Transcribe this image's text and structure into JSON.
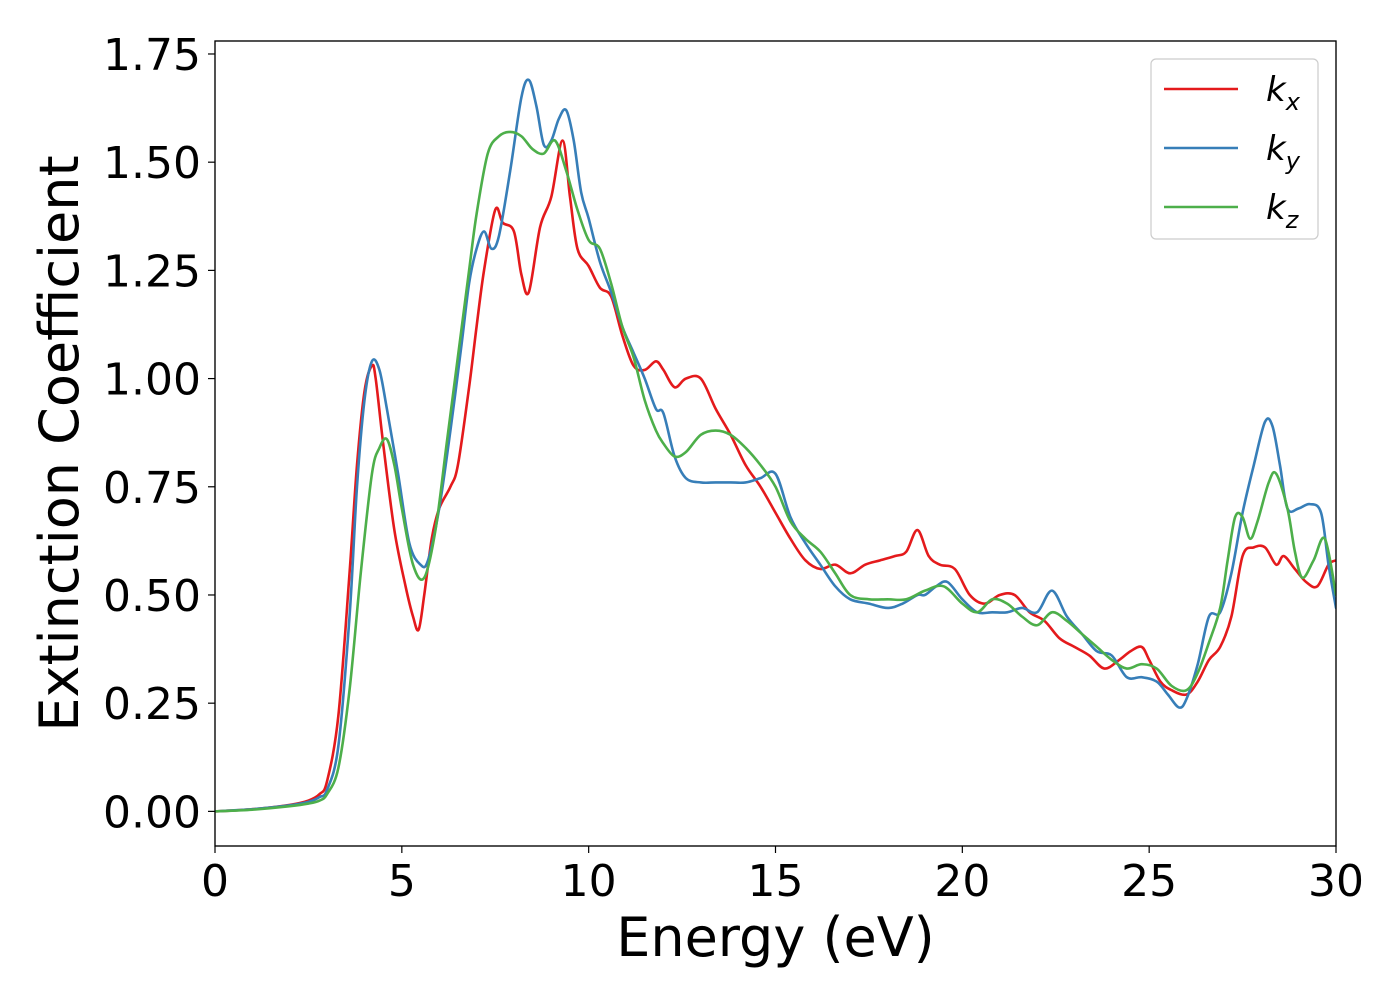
{
  "chart_data": {
    "type": "line",
    "title": "",
    "xlabel": "Energy (eV)",
    "ylabel": "Extinction Coefficient",
    "xlim": [
      0,
      30
    ],
    "ylim": [
      -0.08,
      1.78
    ],
    "xticks": [
      0,
      5,
      10,
      15,
      20,
      25,
      30
    ],
    "xtick_labels": [
      "0",
      "5",
      "10",
      "15",
      "20",
      "25",
      "30"
    ],
    "yticks": [
      0.0,
      0.25,
      0.5,
      0.75,
      1.0,
      1.25,
      1.5,
      1.75
    ],
    "ytick_labels": [
      "0.00",
      "0.25",
      "0.50",
      "0.75",
      "1.00",
      "1.25",
      "1.50",
      "1.75"
    ],
    "grid": false,
    "legend_position": "top-right",
    "series": [
      {
        "name": "kx",
        "legend_base": "k",
        "legend_sub": "x",
        "color": "#e41a1c",
        "x": [
          0,
          1,
          2,
          2.5,
          2.8,
          3.0,
          3.3,
          3.6,
          3.8,
          4.0,
          4.2,
          4.3,
          4.5,
          4.8,
          5.1,
          5.3,
          5.45,
          5.6,
          5.8,
          6.0,
          6.3,
          6.5,
          6.8,
          7.0,
          7.2,
          7.5,
          7.7,
          8.0,
          8.2,
          8.4,
          8.7,
          9.0,
          9.3,
          9.5,
          9.7,
          10.0,
          10.3,
          10.6,
          10.9,
          11.2,
          11.5,
          11.8,
          12.0,
          12.3,
          12.6,
          13.0,
          13.4,
          13.8,
          14.2,
          14.6,
          15.0,
          15.4,
          15.8,
          16.2,
          16.6,
          17.0,
          17.4,
          17.8,
          18.2,
          18.5,
          18.8,
          19.1,
          19.4,
          19.8,
          20.2,
          20.6,
          21.0,
          21.4,
          21.8,
          22.2,
          22.6,
          23.0,
          23.4,
          23.8,
          24.2,
          24.5,
          24.8,
          25.0,
          25.3,
          25.6,
          26.0,
          26.3,
          26.6,
          26.9,
          27.2,
          27.5,
          27.8,
          28.1,
          28.4,
          28.6,
          28.9,
          29.2,
          29.5,
          29.8,
          30.0
        ],
        "y": [
          0.0,
          0.005,
          0.015,
          0.025,
          0.04,
          0.07,
          0.22,
          0.55,
          0.8,
          0.97,
          1.03,
          1.0,
          0.85,
          0.65,
          0.52,
          0.45,
          0.42,
          0.5,
          0.63,
          0.7,
          0.75,
          0.8,
          0.98,
          1.12,
          1.25,
          1.39,
          1.36,
          1.34,
          1.24,
          1.2,
          1.35,
          1.42,
          1.55,
          1.42,
          1.3,
          1.26,
          1.21,
          1.19,
          1.1,
          1.03,
          1.02,
          1.04,
          1.02,
          0.98,
          1.0,
          1.0,
          0.93,
          0.87,
          0.8,
          0.75,
          0.69,
          0.63,
          0.58,
          0.56,
          0.57,
          0.55,
          0.57,
          0.58,
          0.59,
          0.6,
          0.65,
          0.59,
          0.57,
          0.56,
          0.5,
          0.48,
          0.5,
          0.5,
          0.46,
          0.44,
          0.4,
          0.38,
          0.36,
          0.33,
          0.35,
          0.37,
          0.38,
          0.35,
          0.3,
          0.28,
          0.27,
          0.3,
          0.35,
          0.38,
          0.45,
          0.59,
          0.61,
          0.61,
          0.57,
          0.59,
          0.56,
          0.53,
          0.52,
          0.57,
          0.58
        ]
      },
      {
        "name": "ky",
        "legend_base": "k",
        "legend_sub": "y",
        "color": "#377eb8",
        "x": [
          0,
          1,
          2,
          2.5,
          2.8,
          3.0,
          3.3,
          3.6,
          3.8,
          4.0,
          4.2,
          4.4,
          4.6,
          4.9,
          5.2,
          5.5,
          5.7,
          6.0,
          6.3,
          6.6,
          6.8,
          7.0,
          7.2,
          7.4,
          7.6,
          7.9,
          8.2,
          8.4,
          8.6,
          8.8,
          9.0,
          9.2,
          9.4,
          9.6,
          9.8,
          10.0,
          10.3,
          10.6,
          10.9,
          11.2,
          11.5,
          11.8,
          12.0,
          12.3,
          12.6,
          13.0,
          13.4,
          13.8,
          14.2,
          14.6,
          15.0,
          15.4,
          15.8,
          16.2,
          16.6,
          17.0,
          17.5,
          18.0,
          18.4,
          18.8,
          19.0,
          19.3,
          19.6,
          20.0,
          20.4,
          20.8,
          21.2,
          21.6,
          22.0,
          22.4,
          22.8,
          23.2,
          23.6,
          24.0,
          24.4,
          24.8,
          25.2,
          25.5,
          25.8,
          26.0,
          26.3,
          26.6,
          26.9,
          27.2,
          27.5,
          27.8,
          28.1,
          28.3,
          28.5,
          28.7,
          29.0,
          29.3,
          29.6,
          29.8,
          30.0
        ],
        "y": [
          0.0,
          0.005,
          0.014,
          0.022,
          0.033,
          0.05,
          0.15,
          0.45,
          0.75,
          0.95,
          1.04,
          1.02,
          0.93,
          0.78,
          0.62,
          0.57,
          0.58,
          0.7,
          0.88,
          1.08,
          1.22,
          1.3,
          1.34,
          1.3,
          1.33,
          1.48,
          1.65,
          1.69,
          1.63,
          1.54,
          1.55,
          1.6,
          1.62,
          1.55,
          1.43,
          1.37,
          1.27,
          1.2,
          1.12,
          1.06,
          1.0,
          0.93,
          0.92,
          0.82,
          0.77,
          0.76,
          0.76,
          0.76,
          0.76,
          0.77,
          0.78,
          0.68,
          0.62,
          0.57,
          0.52,
          0.49,
          0.48,
          0.47,
          0.48,
          0.5,
          0.5,
          0.52,
          0.53,
          0.49,
          0.46,
          0.46,
          0.46,
          0.47,
          0.46,
          0.51,
          0.45,
          0.41,
          0.37,
          0.36,
          0.31,
          0.31,
          0.3,
          0.27,
          0.24,
          0.26,
          0.34,
          0.45,
          0.46,
          0.55,
          0.69,
          0.8,
          0.9,
          0.89,
          0.8,
          0.7,
          0.7,
          0.71,
          0.69,
          0.57,
          0.47
        ]
      },
      {
        "name": "kz",
        "legend_base": "k",
        "legend_sub": "z",
        "color": "#4daf4a",
        "x": [
          0,
          1,
          2,
          2.5,
          2.8,
          3.0,
          3.3,
          3.6,
          3.9,
          4.2,
          4.4,
          4.6,
          4.8,
          5.0,
          5.3,
          5.6,
          5.9,
          6.2,
          6.5,
          6.8,
          7.0,
          7.3,
          7.6,
          7.9,
          8.2,
          8.5,
          8.8,
          9.1,
          9.4,
          9.7,
          10.0,
          10.3,
          10.6,
          10.9,
          11.2,
          11.5,
          11.8,
          12.0,
          12.3,
          12.6,
          13.0,
          13.4,
          13.8,
          14.2,
          14.6,
          15.0,
          15.4,
          15.8,
          16.2,
          16.6,
          17.0,
          17.5,
          18.0,
          18.5,
          19.0,
          19.5,
          20.0,
          20.4,
          20.8,
          21.2,
          21.6,
          22.0,
          22.4,
          22.8,
          23.2,
          23.6,
          24.0,
          24.4,
          24.8,
          25.2,
          25.6,
          26.0,
          26.3,
          26.6,
          26.9,
          27.1,
          27.3,
          27.5,
          27.7,
          27.9,
          28.2,
          28.4,
          28.7,
          28.9,
          29.1,
          29.4,
          29.7,
          30.0
        ],
        "y": [
          0.0,
          0.004,
          0.012,
          0.018,
          0.025,
          0.04,
          0.1,
          0.28,
          0.55,
          0.78,
          0.84,
          0.86,
          0.8,
          0.7,
          0.57,
          0.54,
          0.65,
          0.85,
          1.05,
          1.25,
          1.38,
          1.52,
          1.56,
          1.57,
          1.56,
          1.53,
          1.52,
          1.55,
          1.48,
          1.39,
          1.32,
          1.3,
          1.22,
          1.12,
          1.05,
          0.95,
          0.88,
          0.85,
          0.82,
          0.83,
          0.87,
          0.88,
          0.87,
          0.84,
          0.8,
          0.75,
          0.67,
          0.63,
          0.6,
          0.55,
          0.5,
          0.49,
          0.49,
          0.49,
          0.51,
          0.52,
          0.48,
          0.46,
          0.49,
          0.48,
          0.45,
          0.43,
          0.46,
          0.44,
          0.41,
          0.38,
          0.35,
          0.33,
          0.34,
          0.33,
          0.29,
          0.28,
          0.32,
          0.39,
          0.47,
          0.58,
          0.68,
          0.68,
          0.63,
          0.67,
          0.76,
          0.78,
          0.7,
          0.6,
          0.54,
          0.58,
          0.63,
          0.5
        ]
      }
    ]
  }
}
